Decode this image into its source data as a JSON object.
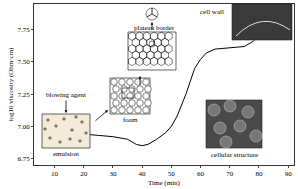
{
  "chart_data": {
    "type": "line",
    "xlabel": "Time (min)",
    "ylabel": "log10 viscosity (Ohm·cm)",
    "x": [
      8,
      10,
      15,
      20,
      25,
      30,
      35,
      38,
      40,
      42,
      45,
      48,
      50,
      52,
      55,
      58,
      60,
      62,
      65,
      70,
      75,
      78,
      80,
      82,
      85
    ],
    "values": [
      6.95,
      6.95,
      6.94,
      6.94,
      6.93,
      6.92,
      6.9,
      6.86,
      6.85,
      6.86,
      6.9,
      6.95,
      7.0,
      7.08,
      7.25,
      7.45,
      7.52,
      7.57,
      7.6,
      7.61,
      7.62,
      7.66,
      7.7,
      7.72,
      7.73
    ],
    "color": "#000000",
    "xlim": [
      3,
      92
    ],
    "ylim": [
      6.7,
      7.95
    ],
    "xticks": [
      10,
      20,
      30,
      40,
      50,
      60,
      70,
      80,
      90
    ],
    "yticks": [
      6.75,
      {
        "value": 7,
        "label": "7.00"
      },
      7.25,
      {
        "value": 7.5,
        "label": "7.50"
      },
      7.75
    ],
    "grid": false,
    "annotations": [
      "blowing agent",
      "emulsion",
      "foam",
      "plateau border",
      "cell wall",
      "cellular structure"
    ]
  }
}
